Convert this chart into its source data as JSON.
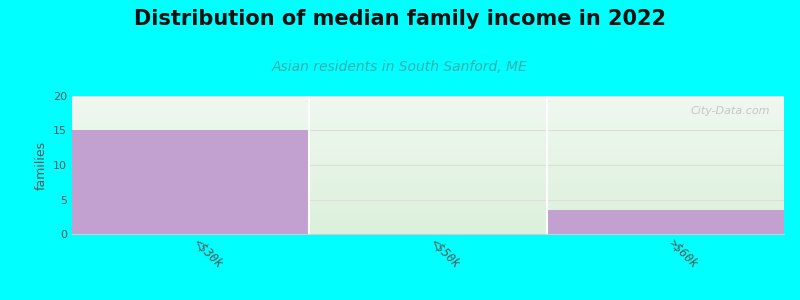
{
  "title": "Distribution of median family income in 2022",
  "subtitle": "Asian residents in South Sanford, ME",
  "categories": [
    "<$30k",
    "<$50k",
    ">$60k"
  ],
  "values": [
    15,
    0,
    3.5
  ],
  "bar_color": "#c2a0d0",
  "background_color": "#00ffff",
  "plot_bg_top": "#f0f8f0",
  "plot_bg_bottom": "#e8f5e8",
  "ylabel": "families",
  "ylim": [
    0,
    20
  ],
  "yticks": [
    0,
    5,
    10,
    15,
    20
  ],
  "title_fontsize": 15,
  "subtitle_fontsize": 10,
  "subtitle_color": "#3aadad",
  "watermark": "City-Data.com",
  "bar_width": 1.0,
  "grid_color": "#dddddd"
}
